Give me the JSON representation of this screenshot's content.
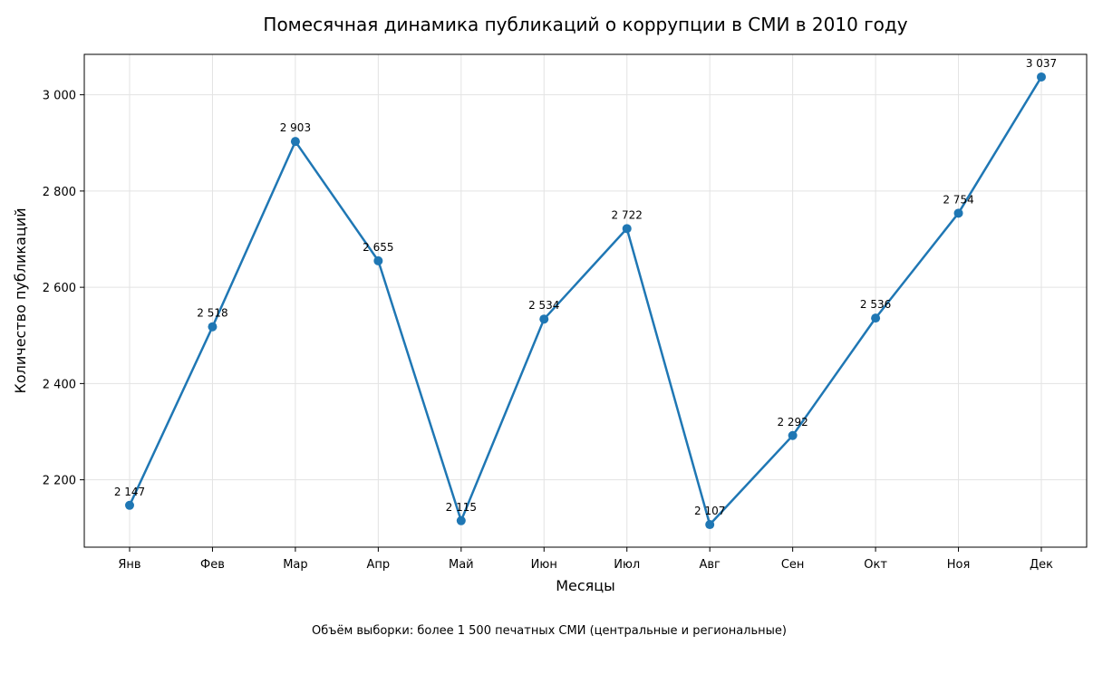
{
  "chart_data": {
    "type": "line",
    "title": "Помесячная динамика публикаций о коррупции в СМИ в 2010 году",
    "xlabel": "Месяцы",
    "ylabel": "Количество публикаций",
    "categories": [
      "Янв",
      "Фев",
      "Мар",
      "Апр",
      "Май",
      "Июн",
      "Июл",
      "Авг",
      "Сен",
      "Окт",
      "Ноя",
      "Дек"
    ],
    "series": [
      {
        "values": [
          2147,
          2518,
          2903,
          2655,
          2115,
          2534,
          2722,
          2107,
          2292,
          2536,
          2754,
          3037
        ],
        "color": "#1f77b4"
      }
    ],
    "data_labels": [
      "2 147",
      "2 518",
      "2 903",
      "2 655",
      "2 115",
      "2 534",
      "2 722",
      "2 107",
      "2 292",
      "2 536",
      "2 754",
      "3 037"
    ],
    "yticks": [
      2200,
      2400,
      2600,
      2800,
      3000
    ],
    "ytick_labels": [
      "2 200",
      "2 400",
      "2 600",
      "2 800",
      "3 000"
    ],
    "ylim": [
      2060,
      3084
    ],
    "grid": true,
    "footnote": "Объём выборки: более 1 500 печатных СМИ (центральные и региональные)"
  }
}
